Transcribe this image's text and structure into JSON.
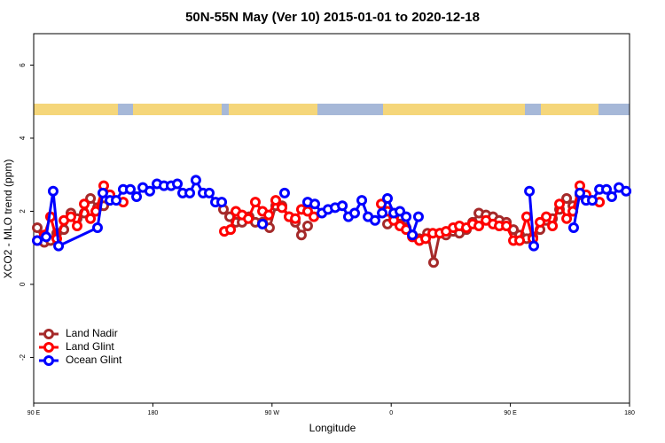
{
  "chart_data": {
    "type": "line",
    "title": "50N-55N May (Ver 10)   2015-01-01 to 2020-12-18",
    "x_label": "Longitude",
    "y_label": "XCO2 - MLO trend (ppm)",
    "xlim": [
      90,
      540
    ],
    "ylim": [
      -3.25,
      6.86
    ],
    "xticks": [
      {
        "value": 90,
        "label": "90 E"
      },
      180,
      {
        "value": 270,
        "label": "90 W"
      },
      {
        "value": 360,
        "label": "0"
      },
      {
        "value": 450,
        "label": "90 E"
      },
      {
        "value": 540,
        "label": "180"
      }
    ],
    "yticks": [
      -2,
      0,
      2,
      4,
      6
    ],
    "legend": "bottom-left",
    "series": [
      {
        "name": "Land Nadir",
        "color": "#a52a2a",
        "x": [
          92.7,
          98.0,
          102.7,
          107.4,
          112.8,
          118.1,
          122.8,
          128.2,
          132.9,
          138.2,
          142.9,
          147.6,
          null,
          233.3,
          238.0,
          242.7,
          247.4,
          252.7,
          257.4,
          262.8,
          268.1,
          272.8,
          277.5,
          282.9,
          287.6,
          292.2,
          296.9,
          null,
          357.2,
          361.9,
          366.6,
          371.3,
          376.0,
          381.3,
          387.4,
          392.0,
          396.7,
          401.4,
          406.8,
          411.5,
          416.8,
          421.5,
          426.2,
          431.6,
          436.9,
          441.6,
          447.0,
          452.3,
          457.0,
          462.3,
          467.0,
          472.4,
          477.1,
          481.8,
          487.1,
          492.5,
          497.2,
          502.5
        ],
        "values": [
          1.55,
          1.15,
          1.2,
          1.4,
          1.5,
          1.95,
          1.8,
          1.95,
          2.35,
          2.1,
          2.15,
          2.45,
          null,
          2.05,
          1.85,
          1.7,
          1.7,
          1.85,
          1.7,
          1.7,
          1.55,
          2.15,
          2.15,
          1.85,
          1.7,
          1.35,
          1.6,
          null,
          1.65,
          1.85,
          1.65,
          1.55,
          1.35,
          1.25,
          1.4,
          0.6,
          1.4,
          1.35,
          1.45,
          1.4,
          1.5,
          1.7,
          1.95,
          1.9,
          1.85,
          1.75,
          1.7,
          1.5,
          1.35,
          1.25,
          1.3,
          1.5,
          1.75,
          1.8,
          2.05,
          2.35,
          2.15,
          2.45
        ]
      },
      {
        "name": "Land Glint",
        "color": "#ff0000",
        "x": [
          92.7,
          98.0,
          102.7,
          107.4,
          112.8,
          118.1,
          122.8,
          128.2,
          132.9,
          136.9,
          142.9,
          147.6,
          157.6,
          null,
          234.0,
          238.7,
          242.7,
          247.4,
          252.1,
          257.4,
          262.8,
          267.5,
          272.8,
          277.5,
          282.9,
          287.6,
          292.2,
          296.9,
          301.6,
          null,
          352.5,
          357.2,
          361.9,
          366.6,
          371.3,
          376.0,
          381.3,
          386.0,
          391.4,
          396.7,
          401.4,
          406.8,
          411.5,
          416.8,
          421.5,
          426.2,
          431.6,
          436.9,
          441.6,
          447.0,
          452.3,
          457.0,
          462.3,
          467.0,
          472.4,
          477.1,
          481.8,
          487.1,
          492.5,
          497.2,
          502.5,
          507.2,
          517.3
        ],
        "values": [
          1.2,
          1.35,
          1.85,
          1.25,
          1.75,
          1.85,
          1.6,
          2.2,
          1.8,
          2.0,
          2.7,
          2.45,
          2.25,
          null,
          1.45,
          1.5,
          2.0,
          1.9,
          1.8,
          2.25,
          2.0,
          1.9,
          2.3,
          2.1,
          1.85,
          1.8,
          2.05,
          2.0,
          1.85,
          null,
          2.2,
          2.0,
          1.75,
          1.6,
          1.5,
          1.3,
          1.2,
          1.25,
          1.4,
          1.4,
          1.45,
          1.55,
          1.6,
          1.55,
          1.65,
          1.6,
          1.75,
          1.65,
          1.6,
          1.6,
          1.2,
          1.2,
          1.85,
          1.25,
          1.7,
          1.85,
          1.6,
          2.2,
          1.8,
          2.0,
          2.7,
          2.45,
          2.25
        ]
      },
      {
        "name": "Ocean Glint",
        "color": "#0000ff",
        "x": [
          92.7,
          99.4,
          104.7,
          108.8,
          138.2,
          142.2,
          147.6,
          152.3,
          157.6,
          163.0,
          167.7,
          172.4,
          177.7,
          183.1,
          188.4,
          193.8,
          198.5,
          202.5,
          207.9,
          212.5,
          217.9,
          222.6,
          227.3,
          232.0,
          null,
          262.8,
          null,
          279.5,
          null,
          296.9,
          302.3,
          307.7,
          312.3,
          317.7,
          323.1,
          327.7,
          332.4,
          337.8,
          342.5,
          347.8,
          353.2,
          357.2,
          361.9,
          366.6,
          371.3,
          376.0,
          380.6,
          null,
          464.4,
          467.7,
          null,
          497.8,
          502.5,
          507.2,
          511.9,
          517.3,
          522.6,
          526.6,
          532.0,
          537.4
        ],
        "values": [
          1.2,
          1.3,
          2.55,
          1.05,
          1.55,
          2.5,
          2.3,
          2.3,
          2.6,
          2.6,
          2.4,
          2.65,
          2.55,
          2.75,
          2.7,
          2.7,
          2.75,
          2.5,
          2.5,
          2.85,
          2.5,
          2.5,
          2.25,
          2.25,
          null,
          1.65,
          null,
          2.5,
          null,
          2.25,
          2.2,
          1.95,
          2.05,
          2.1,
          2.15,
          1.85,
          1.95,
          2.3,
          1.85,
          1.75,
          1.95,
          2.35,
          1.95,
          2.0,
          1.85,
          1.35,
          1.85,
          null,
          2.55,
          1.05,
          null,
          1.55,
          2.5,
          2.3,
          2.3,
          2.6,
          2.6,
          2.4,
          2.65,
          2.55
        ]
      }
    ]
  }
}
